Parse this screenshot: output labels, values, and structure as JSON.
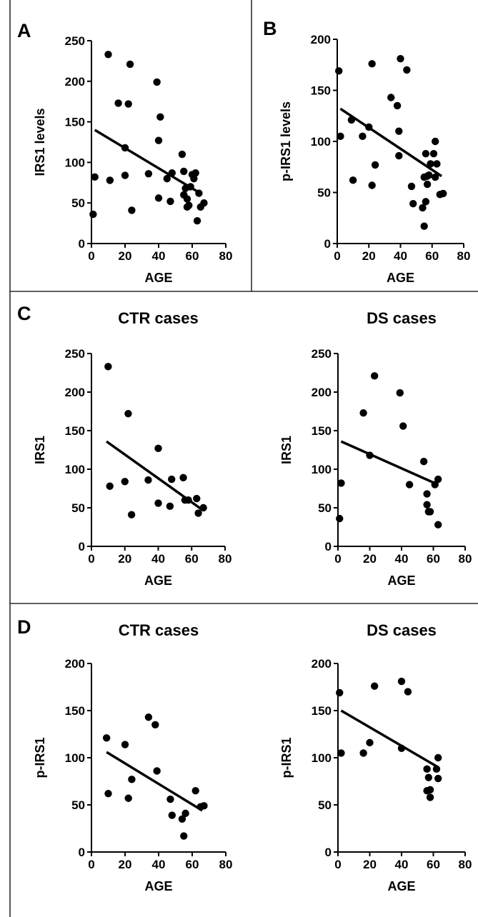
{
  "panels": [
    "A",
    "B",
    "C",
    "D"
  ],
  "chart_data": [
    {
      "id": "A",
      "type": "scatter",
      "title": "",
      "xlabel": "AGE",
      "ylabel": "IRS1 levels",
      "xlim": [
        0,
        80
      ],
      "ylim": [
        0,
        250
      ],
      "xticks": [
        0,
        20,
        40,
        60,
        80
      ],
      "yticks": [
        0,
        50,
        100,
        150,
        200,
        250
      ],
      "points": [
        [
          1,
          36
        ],
        [
          2,
          82
        ],
        [
          10,
          233
        ],
        [
          11,
          78
        ],
        [
          16,
          173
        ],
        [
          20,
          84
        ],
        [
          20,
          118
        ],
        [
          22,
          172
        ],
        [
          23,
          221
        ],
        [
          24,
          41
        ],
        [
          34,
          86
        ],
        [
          39,
          199
        ],
        [
          40,
          56
        ],
        [
          40,
          127
        ],
        [
          41,
          156
        ],
        [
          45,
          80
        ],
        [
          47,
          52
        ],
        [
          48,
          87
        ],
        [
          54,
          110
        ],
        [
          55,
          89
        ],
        [
          55,
          60
        ],
        [
          56,
          68
        ],
        [
          57,
          45
        ],
        [
          57,
          55
        ],
        [
          58,
          47
        ],
        [
          59,
          70
        ],
        [
          60,
          85
        ],
        [
          61,
          80
        ],
        [
          62,
          87
        ],
        [
          63,
          28
        ],
        [
          64,
          62
        ],
        [
          65,
          45
        ],
        [
          67,
          50
        ]
      ],
      "trendline": [
        [
          2,
          140
        ],
        [
          64,
          63
        ]
      ]
    },
    {
      "id": "B",
      "type": "scatter",
      "title": "",
      "xlabel": "AGE",
      "ylabel": "p-IRS1 levels",
      "xlim": [
        0,
        80
      ],
      "ylim": [
        0,
        200
      ],
      "xticks": [
        0,
        20,
        40,
        60,
        80
      ],
      "yticks": [
        0,
        50,
        100,
        150,
        200
      ],
      "points": [
        [
          1,
          169
        ],
        [
          2,
          105
        ],
        [
          9,
          121
        ],
        [
          10,
          62
        ],
        [
          16,
          105
        ],
        [
          20,
          114
        ],
        [
          22,
          57
        ],
        [
          22,
          176
        ],
        [
          24,
          77
        ],
        [
          34,
          143
        ],
        [
          38,
          135
        ],
        [
          39,
          110
        ],
        [
          39,
          86
        ],
        [
          40,
          181
        ],
        [
          44,
          170
        ],
        [
          47,
          56
        ],
        [
          48,
          39
        ],
        [
          54,
          35
        ],
        [
          55,
          17
        ],
        [
          55,
          65
        ],
        [
          56,
          41
        ],
        [
          56,
          88
        ],
        [
          57,
          66
        ],
        [
          57,
          58
        ],
        [
          58,
          67
        ],
        [
          59,
          78
        ],
        [
          61,
          88
        ],
        [
          62,
          65
        ],
        [
          62,
          100
        ],
        [
          63,
          78
        ],
        [
          65,
          48
        ],
        [
          67,
          49
        ]
      ],
      "trendline": [
        [
          2,
          132
        ],
        [
          66,
          66
        ]
      ]
    },
    {
      "id": "C-CTR",
      "type": "scatter",
      "title": "CTR cases",
      "xlabel": "AGE",
      "ylabel": "IRS1",
      "xlim": [
        0,
        80
      ],
      "ylim": [
        0,
        250
      ],
      "xticks": [
        0,
        20,
        40,
        60,
        80
      ],
      "yticks": [
        0,
        50,
        100,
        150,
        200,
        250
      ],
      "points": [
        [
          10,
          233
        ],
        [
          11,
          78
        ],
        [
          20,
          84
        ],
        [
          22,
          172
        ],
        [
          24,
          41
        ],
        [
          34,
          86
        ],
        [
          40,
          56
        ],
        [
          40,
          127
        ],
        [
          47,
          52
        ],
        [
          48,
          87
        ],
        [
          55,
          89
        ],
        [
          56,
          60
        ],
        [
          58,
          60
        ],
        [
          63,
          62
        ],
        [
          64,
          43
        ],
        [
          67,
          50
        ]
      ],
      "trendline": [
        [
          9,
          136
        ],
        [
          66,
          48
        ]
      ]
    },
    {
      "id": "C-DS",
      "type": "scatter",
      "title": "DS cases",
      "xlabel": "AGE",
      "ylabel": "IRS1",
      "xlim": [
        0,
        80
      ],
      "ylim": [
        0,
        250
      ],
      "xticks": [
        0,
        20,
        40,
        60,
        80
      ],
      "yticks": [
        0,
        50,
        100,
        150,
        200,
        250
      ],
      "points": [
        [
          1,
          36
        ],
        [
          2,
          82
        ],
        [
          16,
          173
        ],
        [
          20,
          118
        ],
        [
          23,
          221
        ],
        [
          39,
          199
        ],
        [
          41,
          156
        ],
        [
          45,
          80
        ],
        [
          54,
          110
        ],
        [
          56,
          68
        ],
        [
          56,
          54
        ],
        [
          57,
          45
        ],
        [
          58,
          45
        ],
        [
          61,
          80
        ],
        [
          63,
          87
        ],
        [
          63,
          28
        ]
      ],
      "trendline": [
        [
          2,
          136
        ],
        [
          63,
          80
        ]
      ]
    },
    {
      "id": "D-CTR",
      "type": "scatter",
      "title": "CTR cases",
      "xlabel": "AGE",
      "ylabel": "p-IRS1",
      "xlim": [
        0,
        80
      ],
      "ylim": [
        0,
        200
      ],
      "xticks": [
        0,
        20,
        40,
        60,
        80
      ],
      "yticks": [
        0,
        50,
        100,
        150,
        200
      ],
      "points": [
        [
          9,
          121
        ],
        [
          10,
          62
        ],
        [
          20,
          114
        ],
        [
          22,
          57
        ],
        [
          24,
          77
        ],
        [
          34,
          143
        ],
        [
          38,
          135
        ],
        [
          39,
          86
        ],
        [
          47,
          56
        ],
        [
          48,
          39
        ],
        [
          54,
          35
        ],
        [
          55,
          17
        ],
        [
          56,
          41
        ],
        [
          62,
          65
        ],
        [
          65,
          48
        ],
        [
          67,
          49
        ]
      ],
      "trendline": [
        [
          9,
          106
        ],
        [
          66,
          44
        ]
      ]
    },
    {
      "id": "D-DS",
      "type": "scatter",
      "title": "DS cases",
      "xlabel": "AGE",
      "ylabel": "p-IRS1",
      "xlim": [
        0,
        80
      ],
      "ylim": [
        0,
        200
      ],
      "xticks": [
        0,
        20,
        40,
        60,
        80
      ],
      "yticks": [
        0,
        50,
        100,
        150,
        200
      ],
      "points": [
        [
          1,
          169
        ],
        [
          2,
          105
        ],
        [
          16,
          105
        ],
        [
          20,
          116
        ],
        [
          23,
          176
        ],
        [
          40,
          110
        ],
        [
          40,
          181
        ],
        [
          44,
          170
        ],
        [
          56,
          65
        ],
        [
          56,
          88
        ],
        [
          57,
          79
        ],
        [
          58,
          66
        ],
        [
          58,
          58
        ],
        [
          62,
          88
        ],
        [
          63,
          100
        ],
        [
          63,
          78
        ]
      ],
      "trendline": [
        [
          2,
          150
        ],
        [
          63,
          90
        ]
      ]
    }
  ]
}
